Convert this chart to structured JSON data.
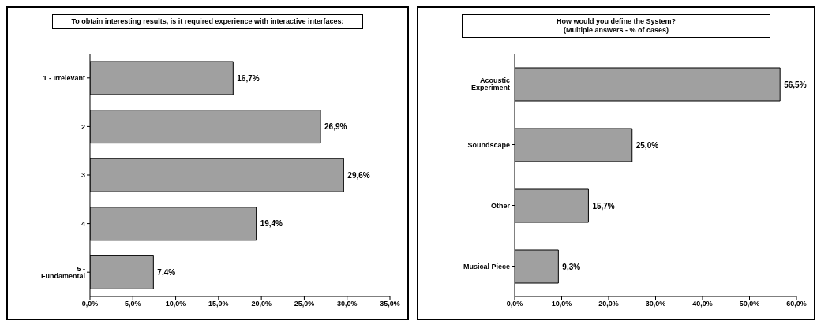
{
  "chart_data": [
    {
      "type": "bar",
      "orientation": "horizontal",
      "title": "To obtain interesting results, is it required experience with interactive interfaces:",
      "categories": [
        "1 - Irrelevant",
        "2",
        "3",
        "4",
        "5 - Fundamental"
      ],
      "values": [
        16.7,
        26.9,
        29.6,
        19.4,
        7.4
      ],
      "value_labels": [
        "16,7%",
        "26,9%",
        "29,6%",
        "19,4%",
        "7,4%"
      ],
      "color": "#a0a0a0",
      "xlim": [
        0,
        35
      ],
      "xticks": [
        {
          "value": 0,
          "label": "0,0%"
        },
        {
          "value": 5,
          "label": "5,0%"
        },
        {
          "value": 10,
          "label": "10,0%"
        },
        {
          "value": 15,
          "label": "15,0%"
        },
        {
          "value": 20,
          "label": "20,0%"
        },
        {
          "value": 25,
          "label": "25,0%"
        },
        {
          "value": 30,
          "label": "30,0%"
        },
        {
          "value": 35,
          "label": "35,0%"
        }
      ]
    },
    {
      "type": "bar",
      "orientation": "horizontal",
      "title": "How would you define the System?",
      "subtitle": "(Multiple answers - % of cases)",
      "categories": [
        "Acoustic Experiment",
        "Soundscape",
        "Other",
        "Musical Piece"
      ],
      "values": [
        56.5,
        25.0,
        15.7,
        9.3
      ],
      "value_labels": [
        "56,5%",
        "25,0%",
        "15,7%",
        "9,3%"
      ],
      "color": "#a0a0a0",
      "xlim": [
        0,
        60
      ],
      "xticks": [
        {
          "value": 0,
          "label": "0,0%"
        },
        {
          "value": 10,
          "label": "10,0%"
        },
        {
          "value": 20,
          "label": "20,0%"
        },
        {
          "value": 30,
          "label": "30,0%"
        },
        {
          "value": 40,
          "label": "40,0%"
        },
        {
          "value": 50,
          "label": "50,0%"
        },
        {
          "value": 60,
          "label": "60,0%"
        }
      ]
    }
  ]
}
